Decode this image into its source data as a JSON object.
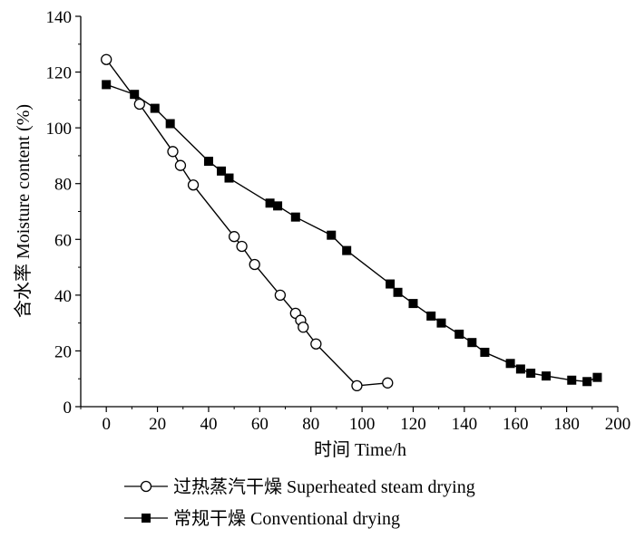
{
  "chart_data": {
    "type": "line",
    "title": "",
    "xlabel": "时间 Time/h",
    "ylabel": "含水率 Moisture content (%)",
    "xlim": [
      -10,
      200
    ],
    "ylim": [
      0,
      140
    ],
    "xticks": [
      0,
      20,
      40,
      60,
      80,
      100,
      120,
      140,
      160,
      180,
      200
    ],
    "yticks": [
      0,
      20,
      40,
      60,
      80,
      100,
      120,
      140
    ],
    "grid": false,
    "legend_position": "bottom",
    "series": [
      {
        "name": "过热蒸汽干燥 Superheated steam drying",
        "marker": "open-circle",
        "color": "#000000",
        "x": [
          0,
          13,
          26,
          29,
          34,
          50,
          53,
          58,
          68,
          74,
          76,
          77,
          82,
          98,
          110
        ],
        "y": [
          124.5,
          108.5,
          91.5,
          86.5,
          79.5,
          61,
          57.5,
          51,
          40,
          33.5,
          31,
          28.5,
          22.5,
          7.5,
          8.5
        ]
      },
      {
        "name": "常规干燥 Conventional drying",
        "marker": "filled-square",
        "color": "#000000",
        "x": [
          0,
          11,
          19,
          25,
          40,
          45,
          48,
          64,
          67,
          74,
          88,
          94,
          111,
          114,
          120,
          127,
          131,
          138,
          143,
          148,
          158,
          162,
          166,
          172,
          182,
          188,
          192
        ],
        "y": [
          115.5,
          112,
          107,
          101.5,
          88,
          84.5,
          82,
          73,
          72,
          68,
          61.5,
          56,
          44,
          41,
          37,
          32.5,
          30,
          26,
          23,
          19.5,
          15.5,
          13.5,
          12,
          11,
          9.5,
          9,
          10.5
        ]
      }
    ]
  }
}
